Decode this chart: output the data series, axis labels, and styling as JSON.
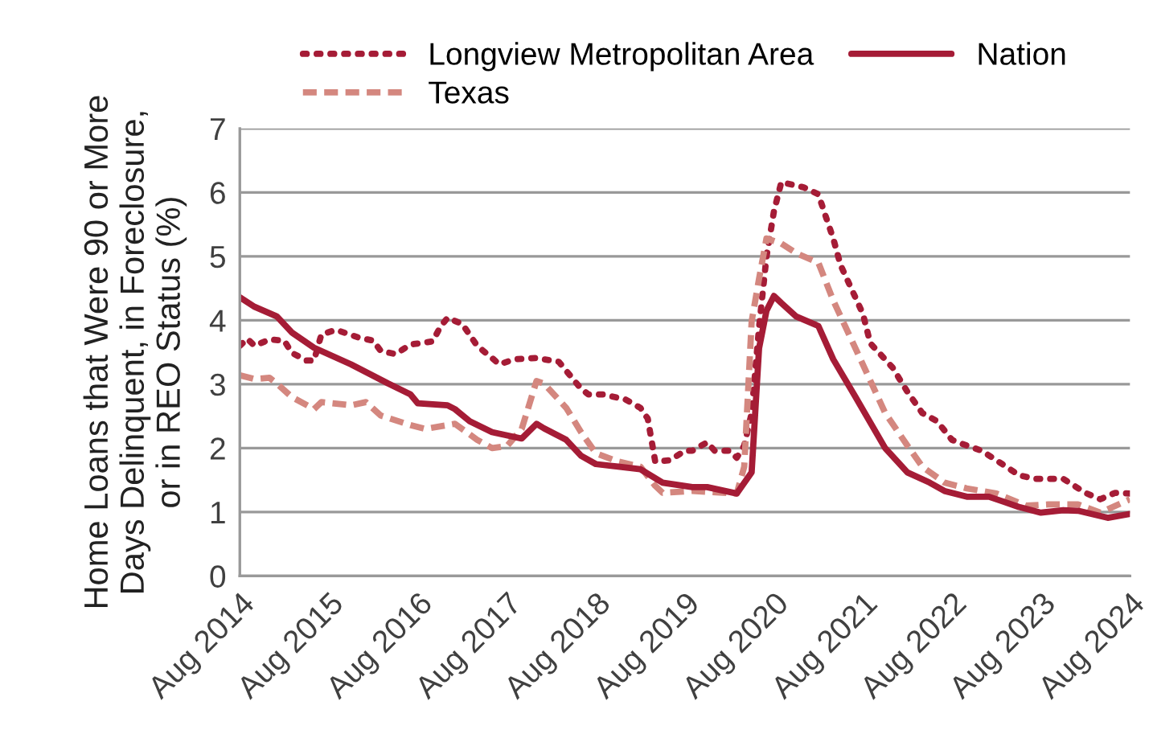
{
  "chart_data": {
    "type": "line",
    "ylabel": "Home Loans that Were 90 or More\nDays Delinquent, in Foreclosure,\nor in REO Status (%)",
    "series": [
      {
        "name": "Longview Metropolitan Area",
        "color": "#a51c36",
        "line_style": "dotted",
        "x": [
          "2014-08",
          "2014-09",
          "2014-10",
          "2014-12",
          "2015-02",
          "2015-03",
          "2015-05",
          "2015-06",
          "2015-07",
          "2015-09",
          "2015-12",
          "2016-02",
          "2016-03",
          "2016-05",
          "2016-07",
          "2016-10",
          "2016-11",
          "2016-12",
          "2017-02",
          "2017-04",
          "2017-06",
          "2017-07",
          "2017-09",
          "2017-12",
          "2018-03",
          "2018-06",
          "2018-07",
          "2018-09",
          "2018-12",
          "2019-02",
          "2019-03",
          "2019-04",
          "2019-06",
          "2019-08",
          "2019-09",
          "2019-11",
          "2019-12",
          "2020-02",
          "2020-03",
          "2020-04",
          "2020-05",
          "2020-06",
          "2020-07",
          "2020-08",
          "2020-09",
          "2020-12",
          "2021-02",
          "2021-03",
          "2021-04",
          "2021-05",
          "2021-08",
          "2021-09",
          "2021-12",
          "2022-02",
          "2022-04",
          "2022-06",
          "2022-08",
          "2022-10",
          "2022-12",
          "2023-02",
          "2023-05",
          "2023-07",
          "2023-11",
          "2024-02",
          "2024-04",
          "2024-06",
          "2024-08"
        ],
        "values": [
          3.6,
          3.71,
          3.6,
          3.7,
          3.68,
          3.49,
          3.37,
          3.37,
          3.78,
          3.85,
          3.73,
          3.68,
          3.52,
          3.47,
          3.62,
          3.67,
          3.89,
          4.04,
          3.94,
          3.6,
          3.41,
          3.31,
          3.39,
          3.41,
          3.35,
          2.93,
          2.84,
          2.84,
          2.76,
          2.63,
          2.46,
          1.79,
          1.81,
          1.96,
          1.96,
          2.09,
          1.96,
          1.96,
          1.85,
          2.04,
          2.55,
          3.89,
          4.99,
          5.7,
          6.16,
          6.08,
          5.97,
          5.62,
          5.28,
          4.86,
          4.1,
          3.64,
          3.26,
          2.88,
          2.55,
          2.42,
          2.13,
          2.04,
          1.96,
          1.81,
          1.58,
          1.52,
          1.52,
          1.3,
          1.2,
          1.3,
          1.29
        ]
      },
      {
        "name": "Texas",
        "color": "#d4877f",
        "line_style": "dashed",
        "x": [
          "2014-08",
          "2014-10",
          "2014-12",
          "2015-01",
          "2015-03",
          "2015-06",
          "2015-07",
          "2015-11",
          "2016-01",
          "2016-03",
          "2016-07",
          "2016-09",
          "2017-01",
          "2017-04",
          "2017-06",
          "2017-08",
          "2017-10",
          "2017-12",
          "2018-01",
          "2018-04",
          "2018-06",
          "2018-08",
          "2018-11",
          "2019-02",
          "2019-04",
          "2019-05",
          "2019-09",
          "2020-03",
          "2020-04",
          "2020-05",
          "2020-06",
          "2020-07",
          "2020-09",
          "2020-11",
          "2021-02",
          "2021-04",
          "2021-07",
          "2021-11",
          "2022-02",
          "2022-04",
          "2022-07",
          "2022-10",
          "2023-02",
          "2023-06",
          "2023-09",
          "2024-01",
          "2024-04",
          "2024-08"
        ],
        "values": [
          3.14,
          3.08,
          3.1,
          3.01,
          2.8,
          2.61,
          2.72,
          2.67,
          2.72,
          2.51,
          2.36,
          2.3,
          2.38,
          2.13,
          2.0,
          2.03,
          2.3,
          3.05,
          3.01,
          2.63,
          2.25,
          1.92,
          1.79,
          1.71,
          1.41,
          1.3,
          1.33,
          1.29,
          1.71,
          3.98,
          4.65,
          5.28,
          5.2,
          5.05,
          4.9,
          4.31,
          3.56,
          2.55,
          2.04,
          1.71,
          1.46,
          1.37,
          1.29,
          1.1,
          1.12,
          1.12,
          0.99,
          1.2
        ]
      },
      {
        "name": "Nation",
        "color": "#a51c36",
        "line_style": "solid",
        "x": [
          "2014-08",
          "2014-10",
          "2015-01",
          "2015-03",
          "2015-06",
          "2015-11",
          "2016-04",
          "2016-07",
          "2016-08",
          "2016-12",
          "2017-01",
          "2017-03",
          "2017-06",
          "2017-10",
          "2017-12",
          "2018-01",
          "2018-04",
          "2018-06",
          "2018-08",
          "2018-11",
          "2019-02",
          "2019-05",
          "2019-09",
          "2019-11",
          "2020-03",
          "2020-05",
          "2020-06",
          "2020-07",
          "2020-08",
          "2020-09",
          "2020-11",
          "2021-02",
          "2021-04",
          "2021-07",
          "2021-11",
          "2022-02",
          "2022-05",
          "2022-07",
          "2022-10",
          "2023-01",
          "2023-03",
          "2023-05",
          "2023-08",
          "2023-11",
          "2024-01",
          "2024-05",
          "2024-08"
        ],
        "values": [
          4.36,
          4.21,
          4.06,
          3.81,
          3.57,
          3.31,
          3.01,
          2.84,
          2.7,
          2.67,
          2.61,
          2.42,
          2.25,
          2.15,
          2.38,
          2.31,
          2.13,
          1.88,
          1.75,
          1.71,
          1.67,
          1.46,
          1.39,
          1.39,
          1.29,
          1.62,
          3.56,
          4.15,
          4.38,
          4.27,
          4.06,
          3.91,
          3.39,
          2.8,
          2.0,
          1.62,
          1.46,
          1.33,
          1.24,
          1.24,
          1.16,
          1.08,
          0.99,
          1.03,
          1.02,
          0.91,
          0.97
        ]
      }
    ],
    "xlim": [
      "2014-08",
      "2024-08"
    ],
    "xticks": [
      {
        "value": "2014-08",
        "label": "Aug 2014"
      },
      {
        "value": "2015-08",
        "label": "Aug 2015"
      },
      {
        "value": "2016-08",
        "label": "Aug 2016"
      },
      {
        "value": "2017-08",
        "label": "Aug 2017"
      },
      {
        "value": "2018-08",
        "label": "Aug 2018"
      },
      {
        "value": "2019-08",
        "label": "Aug 2019"
      },
      {
        "value": "2020-08",
        "label": "Aug 2020"
      },
      {
        "value": "2021-08",
        "label": "Aug 2021"
      },
      {
        "value": "2022-08",
        "label": "Aug 2022"
      },
      {
        "value": "2023-08",
        "label": "Aug 2023"
      },
      {
        "value": "2024-08",
        "label": "Aug 2024"
      }
    ],
    "ylim": [
      0,
      7
    ],
    "yticks": [
      0,
      1,
      2,
      3,
      4,
      5,
      6,
      7
    ],
    "grid": "y",
    "legend": "top",
    "marker": "none"
  }
}
